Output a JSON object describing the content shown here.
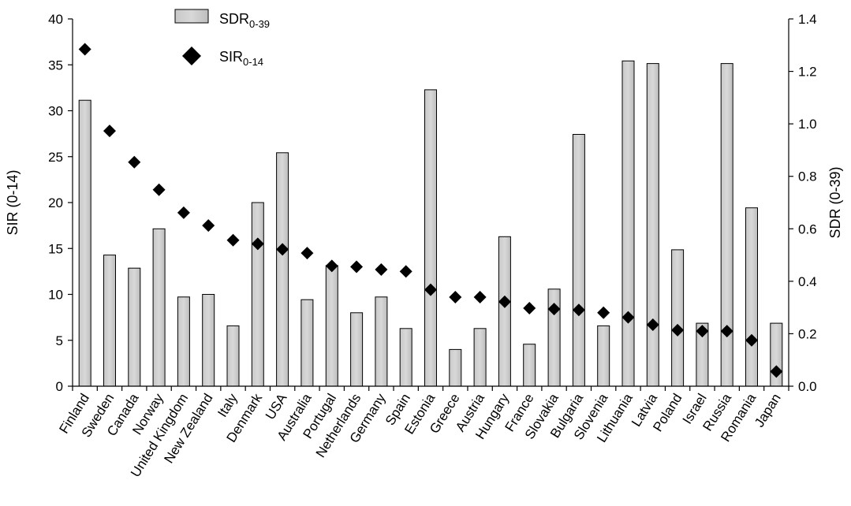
{
  "chart_data": {
    "type": "bar+scatter",
    "categories": [
      "Finland",
      "Sweden",
      "Canada",
      "Norway",
      "United Kingdom",
      "New Zealand",
      "Italy",
      "Denmark",
      "USA",
      "Australia",
      "Portugal",
      "Netherlands",
      "Germany",
      "Spain",
      "Estonia",
      "Greece",
      "Austria",
      "Hungary",
      "France",
      "Slovakia",
      "Bulgaria",
      "Slovenia",
      "Lithuania",
      "Latvia",
      "Poland",
      "Israel",
      "Russia",
      "Romania",
      "Japan"
    ],
    "series": [
      {
        "name": "SDR",
        "name_sub": "0-39",
        "kind": "bar",
        "axis": "right",
        "values": [
          1.09,
          0.5,
          0.45,
          0.6,
          0.34,
          0.35,
          0.23,
          0.7,
          0.89,
          0.33,
          0.46,
          0.28,
          0.34,
          0.22,
          1.13,
          0.14,
          0.22,
          0.57,
          0.16,
          0.37,
          0.96,
          0.23,
          1.24,
          1.23,
          0.52,
          0.24,
          1.23,
          0.68,
          0.24
        ]
      },
      {
        "name": "SIR",
        "name_sub": "0-14",
        "kind": "scatter",
        "axis": "left",
        "values": [
          36.7,
          27.8,
          24.4,
          21.4,
          18.9,
          17.5,
          15.9,
          15.5,
          14.9,
          14.5,
          13.1,
          13.0,
          12.7,
          12.5,
          10.5,
          9.7,
          9.7,
          9.2,
          8.5,
          8.4,
          8.3,
          8.0,
          7.5,
          6.7,
          6.1,
          6.0,
          6.0,
          5.0,
          1.6
        ]
      }
    ],
    "y_left": {
      "label": "SIR (0-14)",
      "lim": [
        0,
        40
      ],
      "ticks": [
        "0",
        "5",
        "10",
        "15",
        "20",
        "25",
        "30",
        "35",
        "40"
      ]
    },
    "y_right": {
      "label": "SDR (0-39)",
      "lim": [
        0,
        1.4
      ],
      "ticks": [
        "0.0",
        "0.2",
        "0.4",
        "0.6",
        "0.8",
        "1.0",
        "1.2",
        "1.4"
      ]
    },
    "grid": false,
    "legend_position": "top-left"
  }
}
